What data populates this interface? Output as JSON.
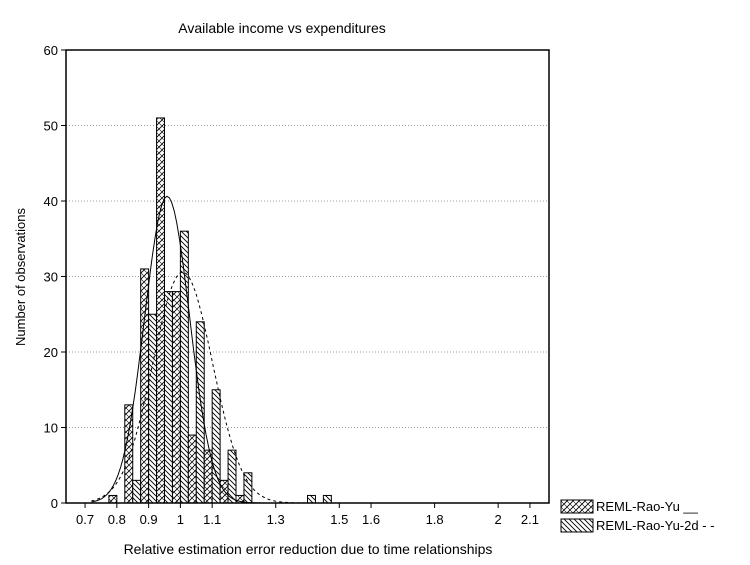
{
  "chart_data": {
    "type": "bar",
    "title": "Available income vs expenditures",
    "xlabel": "Relative estimation error reduction due to time relationships",
    "ylabel": "Number of observations",
    "xlim": [
      0.64,
      2.16
    ],
    "ylim": [
      0,
      60
    ],
    "y_ticks": [
      0,
      10,
      20,
      30,
      40,
      50,
      60
    ],
    "x_ticks": [
      {
        "value": 0.7,
        "label": "0.7"
      },
      {
        "value": 0.8,
        "label": "0.8"
      },
      {
        "value": 0.9,
        "label": "0.9"
      },
      {
        "value": 1.0,
        "label": "1"
      },
      {
        "value": 1.1,
        "label": "1.1"
      },
      {
        "value": 1.3,
        "label": "1.3"
      },
      {
        "value": 1.5,
        "label": "1.5"
      },
      {
        "value": 1.6,
        "label": "1.6"
      },
      {
        "value": 1.8,
        "label": "1.8"
      },
      {
        "value": 2.0,
        "label": "2"
      },
      {
        "value": 2.1,
        "label": "2.1"
      }
    ],
    "bin_width": 0.05,
    "bin_centers": [
      0.8,
      0.85,
      0.9,
      0.95,
      1.0,
      1.05,
      1.1,
      1.15,
      1.2,
      1.25,
      1.3,
      1.35,
      1.4,
      1.45,
      1.5,
      1.55,
      1.6,
      1.65,
      1.7,
      1.75,
      1.8,
      1.85,
      1.9,
      1.95,
      2.0
    ],
    "grid": true,
    "legend_position": "bottom-right",
    "series": [
      {
        "name": "REML-Rao-Yu __",
        "pattern": "cross-hatch",
        "values": [
          1,
          13,
          31,
          51,
          28,
          9,
          7,
          3,
          1,
          0,
          0,
          0,
          0,
          0,
          0,
          0,
          0,
          0,
          0,
          0,
          0,
          0,
          0,
          0,
          0
        ],
        "fit": "normal",
        "fit_style": "solid"
      },
      {
        "name": "REML-Rao-Yu-2d - -",
        "pattern": "diagonal",
        "values": [
          0,
          3,
          25,
          28,
          36,
          24,
          15,
          7,
          4,
          0,
          0,
          0,
          1,
          1,
          0,
          0,
          0,
          0,
          0,
          0,
          0,
          0,
          0,
          0,
          0
        ],
        "fit": "normal",
        "fit_style": "dashed"
      }
    ]
  }
}
